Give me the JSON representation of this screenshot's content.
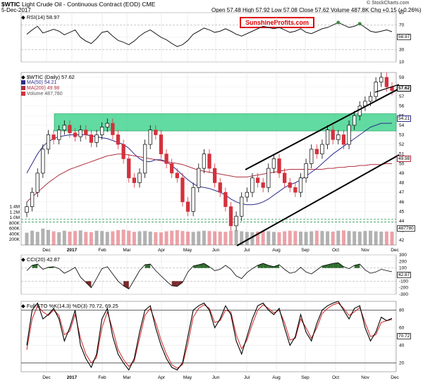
{
  "header": {
    "symbol": "$WTIC",
    "name": "Light Crude Oil - Continuous Contract (EOD)",
    "exchange": "CME",
    "date": "5-Dec-2017",
    "quote": "Open 57.48  High 57.92  Low 57.08  Close 57.62  Volume 487.8K  Chg +0.15 (+0.26%)",
    "copyright": "© StockCharts.com",
    "badge": "SunshineProfits.com"
  },
  "rsi": {
    "label": "RSI(14) 58.97",
    "value_label": "58.97",
    "ticks": [
      "90",
      "70",
      "50",
      "30",
      "10"
    ]
  },
  "price": {
    "label": "$WTIC (Daily) 57.62",
    "ma50": "MA(50) 54.21",
    "ma200": "MA(200) 49.98",
    "volume": "Volume 487,780",
    "close_label": "57.62",
    "ma50_label": "54.21",
    "ma200_label": "49.98",
    "vol_label": "487780",
    "ticks": [
      "59",
      "58",
      "57",
      "56",
      "55",
      "54",
      "53",
      "52",
      "51",
      "50",
      "49",
      "48",
      "47",
      "46",
      "45",
      "44",
      "43",
      "42"
    ],
    "vol_ticks": [
      "1.4M",
      "1.2M",
      "1.0M",
      "800K",
      "600K",
      "400K",
      "200K"
    ]
  },
  "cci": {
    "label": "CCI(20) 42.87",
    "value_label": "42.87",
    "ticks": [
      "300",
      "200",
      "100",
      "0",
      "-100",
      "-200",
      "-300"
    ]
  },
  "sto": {
    "label": "Full STO %K(14,3) %D(3) 70.72, 69.25",
    "value_label": "70.72",
    "ticks": [
      "80",
      "60",
      "50",
      "40",
      "20"
    ]
  },
  "x_labels": [
    "Dec",
    "2017",
    "Feb",
    "Mar",
    "Apr",
    "May",
    "Jun",
    "Jul",
    "Aug",
    "Sep",
    "Oct",
    "Nov",
    "Dec"
  ],
  "colors": {
    "up": "#000000",
    "down": "#d4313d",
    "ma50": "#2d2d8c",
    "ma200": "#b03040",
    "zone": "#3ad28a",
    "rsi": "#000000",
    "cci_pos": "#2e6b2e",
    "cci_neg": "#7a2a2a",
    "sto_k": "#000000",
    "sto_d": "#d02020",
    "channel": "#000000"
  },
  "chart_data": [
    {
      "type": "line",
      "title": "RSI(14) 58.97",
      "ylim": [
        10,
        90
      ],
      "series": [
        {
          "name": "RSI(14)",
          "values": [
            55,
            62,
            68,
            57,
            60,
            63,
            60,
            54,
            58,
            62,
            50,
            44,
            40,
            48,
            58,
            60,
            52,
            45,
            42,
            38,
            44,
            52,
            58,
            62,
            56,
            50,
            46,
            40,
            35,
            38,
            45,
            55,
            60,
            65,
            62,
            58,
            60,
            64,
            60,
            55,
            52,
            56,
            60,
            64,
            68,
            66,
            64,
            66,
            62,
            58,
            60,
            64,
            58,
            56,
            60,
            64,
            66,
            70,
            74,
            70,
            66,
            68,
            72,
            66,
            60,
            58,
            60,
            62,
            59
          ]
        }
      ]
    },
    {
      "type": "line",
      "title": "$WTIC (Daily) 57.62",
      "ylim": [
        42,
        59
      ],
      "series": [
        {
          "name": "$WTIC",
          "values": [
            45.5,
            47,
            49,
            51.5,
            53,
            52.5,
            53.5,
            54,
            53.2,
            52.8,
            53.5,
            53,
            52.2,
            53,
            53.8,
            54.2,
            53,
            52,
            50.5,
            48.5,
            48,
            49,
            52,
            53.5,
            53,
            51,
            50,
            49,
            48.5,
            46,
            45,
            47.5,
            49.5,
            51,
            49.5,
            48,
            47,
            45.5,
            43.5,
            44.5,
            46.5,
            47,
            48.5,
            48,
            47.5,
            49.5,
            50.5,
            49,
            48,
            47.5,
            47,
            48.5,
            50,
            51.5,
            51,
            52,
            53.5,
            52.5,
            53,
            52,
            54,
            55,
            56,
            56.5,
            57,
            58.5,
            59,
            58,
            57.62
          ]
        },
        {
          "name": "MA(50) 54.21",
          "values": [
            49,
            50,
            51,
            51.8,
            52.3,
            52.6,
            52.8,
            52.9,
            53,
            53,
            53,
            53,
            52.9,
            52.8,
            52.7,
            52.6,
            52.4,
            52.2,
            52,
            51.6,
            51,
            50.5,
            50.2,
            50.2,
            50.4,
            50.4,
            50.2,
            49.8,
            49.3,
            48.8,
            48.3,
            47.9,
            47.6,
            47.5,
            47.4,
            47.2,
            47,
            46.7,
            46.3,
            46,
            45.8,
            45.7,
            45.7,
            45.8,
            46,
            46.3,
            46.7,
            47.1,
            47.5,
            47.8,
            48,
            48.3,
            48.7,
            49.1,
            49.5,
            50,
            50.5,
            51,
            51.4,
            51.8,
            52.2,
            52.6,
            53,
            53.4,
            53.8,
            54,
            54.2,
            54.2,
            54.21
          ]
        },
        {
          "name": "MA(200) 49.98",
          "values": [
            46,
            46.5,
            47,
            47.5,
            48,
            48.4,
            48.8,
            49.1,
            49.4,
            49.6,
            49.8,
            50,
            50.2,
            50.4,
            50.6,
            50.8,
            50.9,
            51,
            51,
            50.9,
            50.8,
            50.7,
            50.6,
            50.5,
            50.4,
            50.3,
            50.2,
            50.1,
            50,
            49.9,
            49.7,
            49.5,
            49.3,
            49.2,
            49.1,
            49,
            48.9,
            48.8,
            48.7,
            48.6,
            48.6,
            48.6,
            48.7,
            48.8,
            48.9,
            49,
            49.1,
            49.2,
            49.3,
            49.4,
            49.4,
            49.4,
            49.4,
            49.4,
            49.4,
            49.4,
            49.5,
            49.5,
            49.6,
            49.6,
            49.7,
            49.7,
            49.8,
            49.8,
            49.9,
            49.9,
            49.9,
            50,
            49.98
          ]
        }
      ]
    },
    {
      "type": "bar",
      "title": "Volume 487,780",
      "ylim": [
        0,
        1400000
      ],
      "series": [
        {
          "name": "Volume",
          "values": [
            450000,
            520000,
            480000,
            600000,
            550000,
            500000,
            470000,
            520000,
            490000,
            510000,
            530000,
            480000,
            470000,
            520000,
            510000,
            480000,
            500000,
            540000,
            560000,
            520000,
            480000,
            500000,
            510000,
            490000,
            470000,
            460000,
            500000,
            520000,
            540000,
            510000,
            490000,
            480000,
            500000,
            520000,
            510000,
            500000,
            490000,
            480000,
            520000,
            540000,
            500000,
            480000,
            470000,
            490000,
            510000,
            500000,
            480000,
            470000,
            500000,
            520000,
            510000,
            490000,
            480000,
            500000,
            520000,
            510000,
            500000,
            490000,
            520000,
            530000,
            510000,
            500000,
            490000,
            510000,
            520000,
            500000,
            490000,
            495000,
            487780
          ]
        }
      ]
    },
    {
      "type": "area",
      "title": "CCI(20) 42.87",
      "ylim": [
        -300,
        300
      ],
      "series": [
        {
          "name": "CCI(20)",
          "values": [
            60,
            140,
            160,
            80,
            110,
            120,
            90,
            20,
            60,
            110,
            -40,
            -120,
            -200,
            -60,
            90,
            120,
            10,
            -100,
            -170,
            -220,
            -80,
            60,
            150,
            160,
            60,
            -20,
            -100,
            -170,
            -180,
            -120,
            40,
            130,
            150,
            170,
            120,
            60,
            80,
            140,
            80,
            -20,
            -60,
            30,
            90,
            140,
            170,
            140,
            120,
            150,
            80,
            20,
            40,
            110,
            40,
            10,
            70,
            130,
            150,
            170,
            180,
            120,
            90,
            140,
            160,
            70,
            20,
            40,
            80,
            60,
            42.87
          ]
        }
      ]
    },
    {
      "type": "line",
      "title": "Full STO %K(14,3) %D(3) 70.72, 69.25",
      "ylim": [
        10,
        90
      ],
      "series": [
        {
          "name": "%K",
          "values": [
            40,
            80,
            88,
            70,
            75,
            82,
            70,
            45,
            60,
            80,
            40,
            25,
            15,
            30,
            70,
            82,
            50,
            30,
            20,
            12,
            25,
            55,
            80,
            85,
            60,
            40,
            25,
            15,
            12,
            20,
            50,
            80,
            85,
            88,
            80,
            60,
            70,
            85,
            75,
            45,
            30,
            50,
            70,
            85,
            88,
            80,
            75,
            82,
            60,
            40,
            50,
            75,
            55,
            45,
            65,
            80,
            85,
            88,
            90,
            80,
            70,
            82,
            85,
            60,
            45,
            55,
            72,
            68,
            70.72
          ]
        },
        {
          "name": "%D",
          "values": [
            35,
            70,
            85,
            78,
            74,
            80,
            74,
            52,
            56,
            75,
            48,
            30,
            20,
            26,
            60,
            78,
            58,
            35,
            24,
            16,
            22,
            48,
            74,
            82,
            66,
            46,
            30,
            18,
            14,
            18,
            42,
            72,
            82,
            86,
            82,
            66,
            68,
            80,
            78,
            52,
            36,
            46,
            64,
            80,
            86,
            82,
            77,
            80,
            66,
            46,
            48,
            70,
            60,
            48,
            60,
            76,
            82,
            86,
            88,
            82,
            74,
            78,
            83,
            66,
            50,
            52,
            66,
            68,
            69.25
          ]
        }
      ]
    }
  ]
}
